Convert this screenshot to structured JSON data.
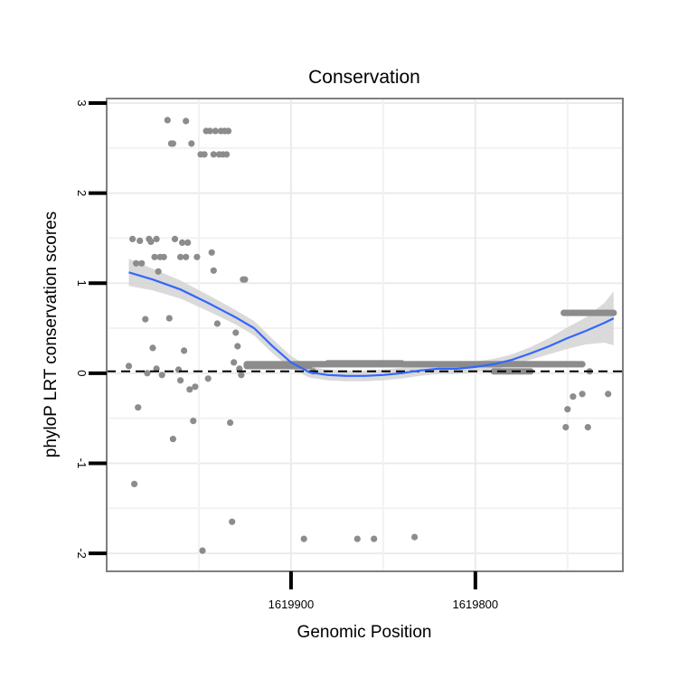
{
  "chart_data": {
    "type": "scatter",
    "title": "Conservation",
    "xlabel": "Genomic Position",
    "ylabel": "phyloP LRT conservation scores",
    "x_reversed": true,
    "xlim": [
      1620000,
      1619720
    ],
    "ylim": [
      -2.2,
      3.05
    ],
    "x_ticks": [
      1619900,
      1619800
    ],
    "x_tick_labels": [
      "1619900",
      "1619800"
    ],
    "y_ticks": [
      -2,
      -1,
      0,
      1,
      2,
      3
    ],
    "y_tick_labels": [
      "-2",
      "-1",
      "0",
      "1",
      "2",
      "3"
    ],
    "reference_line": {
      "y": 0,
      "style": "dashed"
    },
    "colors": {
      "points": "#8c8c8c",
      "smooth": "#3366ff",
      "band": "#d4d4d4",
      "grid_minor": "#f2f2f2",
      "grid_major": "#ebebeb",
      "border": "#7f7f7f"
    },
    "series": [
      {
        "name": "scores",
        "points": [
          [
            1619988,
            0.08
          ],
          [
            1619986,
            1.49
          ],
          [
            1619985,
            -1.23
          ],
          [
            1619984,
            1.22
          ],
          [
            1619982,
            1.47
          ],
          [
            1619983,
            -0.38
          ],
          [
            1619981,
            1.22
          ],
          [
            1619979,
            0.6
          ],
          [
            1619978,
            0.0
          ],
          [
            1619977,
            1.49
          ],
          [
            1619976,
            1.46
          ],
          [
            1619975,
            0.28
          ],
          [
            1619974,
            1.29
          ],
          [
            1619973,
            1.49
          ],
          [
            1619973,
            0.05
          ],
          [
            1619972,
            1.13
          ],
          [
            1619971,
            1.29
          ],
          [
            1619970,
            -0.02
          ],
          [
            1619969,
            1.29
          ],
          [
            1619967,
            2.81
          ],
          [
            1619966,
            0.61
          ],
          [
            1619965,
            2.55
          ],
          [
            1619964,
            2.55
          ],
          [
            1619964,
            -0.73
          ],
          [
            1619963,
            1.49
          ],
          [
            1619961,
            0.04
          ],
          [
            1619960,
            1.29
          ],
          [
            1619960,
            -0.08
          ],
          [
            1619959,
            1.45
          ],
          [
            1619958,
            0.25
          ],
          [
            1619957,
            2.8
          ],
          [
            1619957,
            1.29
          ],
          [
            1619956,
            1.45
          ],
          [
            1619955,
            -0.18
          ],
          [
            1619954,
            2.55
          ],
          [
            1619953,
            -0.53
          ],
          [
            1619952,
            -0.15
          ],
          [
            1619951,
            1.29
          ],
          [
            1619949,
            2.43
          ],
          [
            1619948,
            -1.97
          ],
          [
            1619947,
            2.43
          ],
          [
            1619946,
            2.69
          ],
          [
            1619945,
            -0.06
          ],
          [
            1619944,
            2.69
          ],
          [
            1619943,
            1.34
          ],
          [
            1619942,
            1.14
          ],
          [
            1619942,
            2.43
          ],
          [
            1619941,
            2.69
          ],
          [
            1619940,
            0.55
          ],
          [
            1619939,
            2.43
          ],
          [
            1619938,
            2.69
          ],
          [
            1619937,
            2.43
          ],
          [
            1619936,
            2.69
          ],
          [
            1619935,
            2.43
          ],
          [
            1619934,
            2.69
          ],
          [
            1619933,
            -0.55
          ],
          [
            1619932,
            -1.65
          ],
          [
            1619931,
            0.12
          ],
          [
            1619930,
            0.45
          ],
          [
            1619929,
            0.3
          ],
          [
            1619928,
            0.05
          ],
          [
            1619927,
            -0.02
          ],
          [
            1619926,
            1.04
          ],
          [
            1619925,
            1.04
          ],
          [
            1619893,
            -1.84
          ],
          [
            1619888,
            0.02
          ],
          [
            1619864,
            -1.84
          ],
          [
            1619855,
            -1.84
          ],
          [
            1619833,
            -1.82
          ],
          [
            1619751,
            -0.6
          ],
          [
            1619750,
            -0.4
          ],
          [
            1619747,
            -0.26
          ],
          [
            1619742,
            -0.23
          ],
          [
            1619739,
            -0.6
          ],
          [
            1619738,
            0.02
          ],
          [
            1619728,
            -0.23
          ]
        ],
        "bands": [
          {
            "x_from": 1619924,
            "x_to": 1619742,
            "y": 0.1
          },
          {
            "x_from": 1619924,
            "x_to": 1619890,
            "y": 0.08
          },
          {
            "x_from": 1619880,
            "x_to": 1619840,
            "y": 0.11
          },
          {
            "x_from": 1619790,
            "x_to": 1619770,
            "y": 0.02
          },
          {
            "x_from": 1619752,
            "x_to": 1619725,
            "y": 0.67
          }
        ]
      }
    ],
    "smooth": {
      "x": [
        1619988,
        1619975,
        1619960,
        1619945,
        1619930,
        1619920,
        1619910,
        1619900,
        1619890,
        1619880,
        1619870,
        1619860,
        1619850,
        1619840,
        1619830,
        1619820,
        1619810,
        1619800,
        1619790,
        1619780,
        1619770,
        1619760,
        1619750,
        1619740,
        1619730,
        1619725
      ],
      "y": [
        1.12,
        1.04,
        0.93,
        0.78,
        0.62,
        0.5,
        0.3,
        0.12,
        0.01,
        -0.02,
        -0.03,
        -0.03,
        -0.02,
        0.0,
        0.03,
        0.05,
        0.05,
        0.07,
        0.1,
        0.15,
        0.22,
        0.3,
        0.39,
        0.47,
        0.56,
        0.61
      ],
      "se": [
        0.15,
        0.12,
        0.1,
        0.09,
        0.08,
        0.08,
        0.08,
        0.07,
        0.06,
        0.06,
        0.06,
        0.06,
        0.06,
        0.06,
        0.06,
        0.06,
        0.06,
        0.06,
        0.06,
        0.06,
        0.07,
        0.09,
        0.12,
        0.15,
        0.22,
        0.3
      ]
    }
  }
}
